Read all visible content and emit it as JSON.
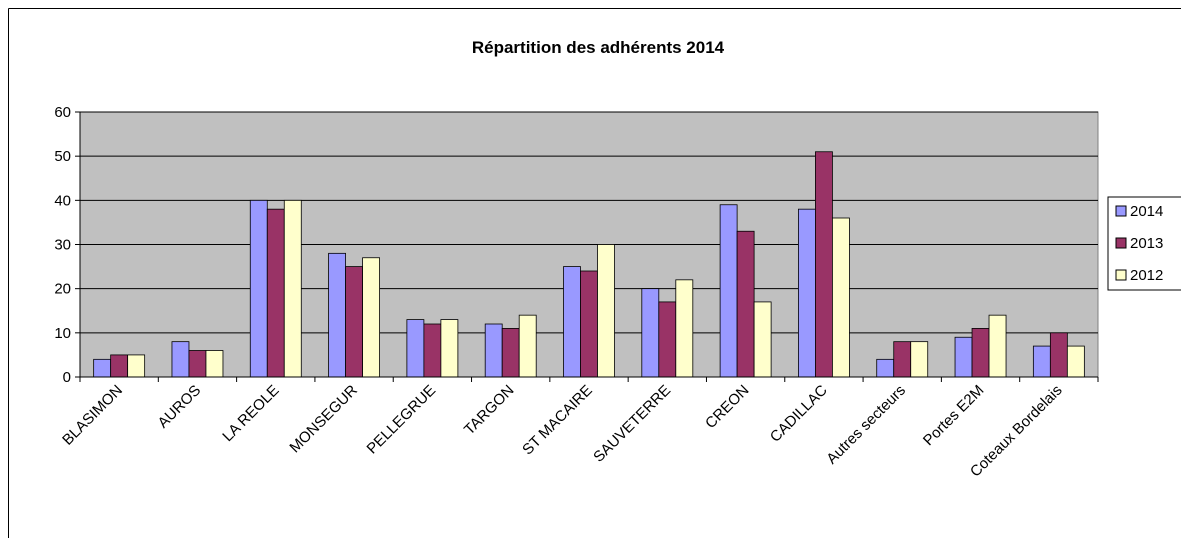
{
  "chart_data": {
    "type": "bar",
    "title": "Répartition des adhérents 2014",
    "categories": [
      "BLASIMON",
      "AUROS",
      "LA REOLE",
      "MONSEGUR",
      "PELLEGRUE",
      "TARGON",
      "ST MACAIRE",
      "SAUVETERRE",
      "CREON",
      "CADILLAC",
      "Autres secteurs",
      "Portes E2M",
      "Coteaux Bordelais"
    ],
    "series": [
      {
        "name": "2014",
        "color": "#9999ff",
        "values": [
          4,
          8,
          40,
          28,
          13,
          12,
          25,
          20,
          39,
          38,
          4,
          9,
          7
        ]
      },
      {
        "name": "2013",
        "color": "#993366",
        "values": [
          5,
          6,
          38,
          25,
          12,
          11,
          24,
          17,
          33,
          51,
          8,
          11,
          10
        ]
      },
      {
        "name": "2012",
        "color": "#ffffcc",
        "values": [
          5,
          6,
          40,
          27,
          13,
          14,
          30,
          22,
          17,
          36,
          8,
          14,
          7
        ]
      }
    ],
    "ylim": [
      0,
      60
    ],
    "yticks": [
      0,
      10,
      20,
      30,
      40,
      50,
      60
    ],
    "grid": true,
    "legend": "right"
  }
}
